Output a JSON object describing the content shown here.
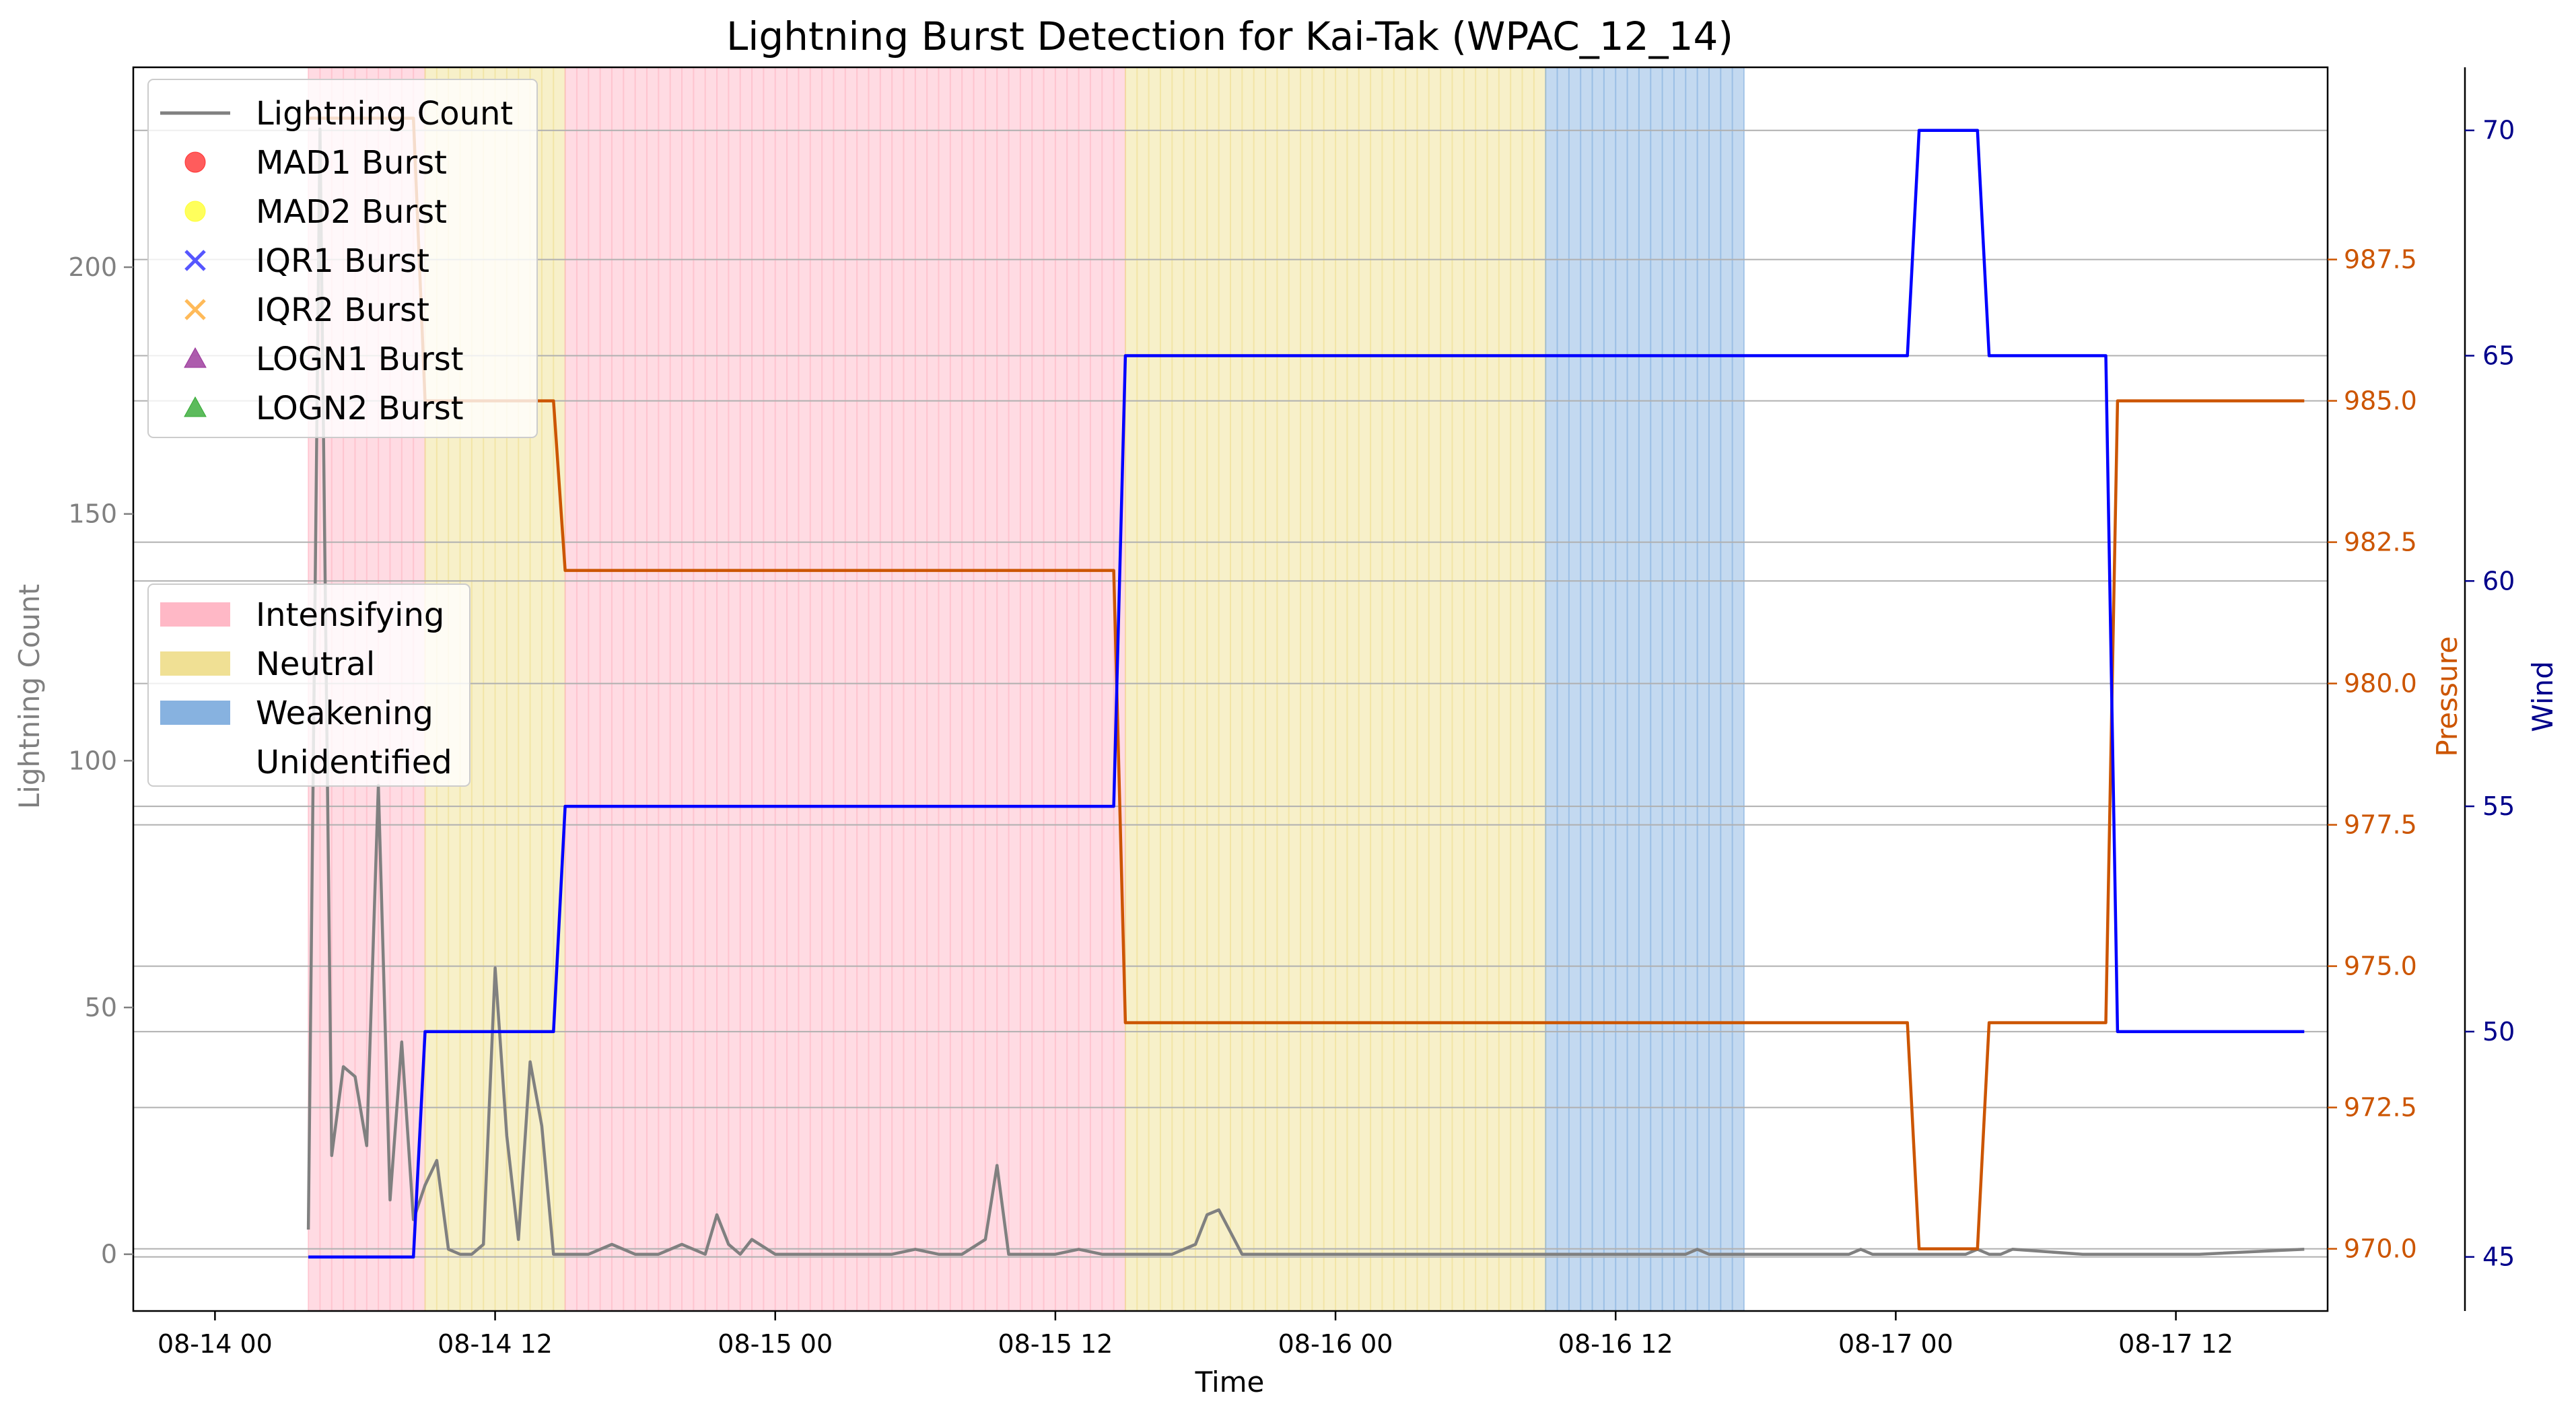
{
  "chart_data": {
    "type": "line",
    "title": "Lightning Burst Detection for Kai-Tak (WPAC_12_14)",
    "xlabel": "Time",
    "ylabel_left": "Lightning Count",
    "ylabel_right1": "Pressure",
    "ylabel_right2": "Wind",
    "x_ticks": [
      "08-14 00",
      "08-14 12",
      "08-15 00",
      "08-15 12",
      "08-16 00",
      "08-16 12",
      "08-17 00",
      "08-17 12"
    ],
    "x_tick_hours": [
      0,
      12,
      24,
      36,
      48,
      60,
      72,
      84
    ],
    "xlim_hours": [
      -3.5,
      90.5
    ],
    "ylim_left": [
      -11.5,
      240.5
    ],
    "yticks_left": [
      0,
      50,
      100,
      150,
      200
    ],
    "ylim_pressure": [
      968.9,
      990.9
    ],
    "yticks_pressure": [
      "970.0",
      "972.5",
      "975.0",
      "977.5",
      "980.0",
      "982.5",
      "985.0",
      "987.5"
    ],
    "ylim_wind": [
      43.8,
      71.4
    ],
    "yticks_wind": [
      45,
      50,
      55,
      60,
      65,
      70
    ],
    "grid": "horizontal",
    "colors": {
      "lightning": "#808080",
      "pressure": "#cc5500",
      "wind": "#0000ff",
      "wind_axis": "#00008b",
      "intensifying": "#ffb0c0",
      "neutral": "#eedd88",
      "weakening": "#7aaadd"
    },
    "regimes": [
      {
        "label": "Intensifying",
        "start": 4,
        "end": 9
      },
      {
        "label": "Neutral",
        "start": 9,
        "end": 15
      },
      {
        "label": "Intensifying",
        "start": 15,
        "end": 39
      },
      {
        "label": "Neutral",
        "start": 39,
        "end": 57
      },
      {
        "label": "Weakening",
        "start": 57,
        "end": 65.5
      }
    ],
    "series": [
      {
        "name": "Lightning Count",
        "axis": "left",
        "x": [
          4,
          4.5,
          5,
          5.5,
          6,
          6.5,
          7,
          7.5,
          8,
          8.5,
          9,
          9.5,
          10,
          10.5,
          11,
          11.5,
          12,
          12.5,
          13,
          13.5,
          14,
          14.5,
          15,
          16,
          17,
          18,
          19,
          20,
          21,
          21.5,
          22,
          22.5,
          23,
          24,
          25,
          26,
          27,
          28,
          29,
          30,
          31,
          32,
          33,
          33.5,
          34,
          35,
          36,
          37,
          38,
          39,
          40,
          41,
          42,
          42.5,
          43,
          44,
          45,
          50,
          55,
          60,
          63,
          63.5,
          64,
          70,
          70.5,
          71,
          75,
          75.5,
          76,
          76.5,
          77,
          80,
          85,
          89.5
        ],
        "values": [
          5,
          228,
          20,
          38,
          36,
          22,
          95,
          11,
          43,
          7,
          14,
          19,
          1,
          0,
          0,
          2,
          58,
          24,
          3,
          39,
          26,
          0,
          0,
          0,
          2,
          0,
          0,
          2,
          0,
          8,
          2,
          0,
          3,
          0,
          0,
          0,
          0,
          0,
          0,
          1,
          0,
          0,
          3,
          18,
          0,
          0,
          0,
          1,
          0,
          0,
          0,
          0,
          2,
          8,
          9,
          0,
          0,
          0,
          0,
          0,
          0,
          1,
          0,
          0,
          1,
          0,
          0,
          1,
          0,
          0,
          1,
          0,
          0,
          1
        ]
      },
      {
        "name": "Pressure",
        "axis": "right1",
        "x": [
          4,
          8.5,
          9,
          14.5,
          15,
          38.5,
          39,
          72.5,
          73,
          75.5,
          76,
          81,
          81.5,
          89.5
        ],
        "values": [
          990,
          990,
          985,
          985,
          982,
          982,
          974,
          974,
          970,
          970,
          974,
          974,
          985,
          985
        ]
      },
      {
        "name": "Wind",
        "axis": "right2",
        "x": [
          4,
          8.5,
          9,
          14.5,
          15,
          38.5,
          39,
          72.5,
          73,
          75.5,
          76,
          81,
          81.5,
          89.5
        ],
        "values": [
          45,
          45,
          50,
          50,
          55,
          55,
          65,
          65,
          70,
          70,
          65,
          65,
          50,
          50
        ]
      }
    ],
    "legend_markers": [
      {
        "label": "Lightning Count",
        "type": "line",
        "color": "#808080"
      },
      {
        "label": "MAD1 Burst",
        "type": "circle",
        "color": "#ff3333"
      },
      {
        "label": "MAD2 Burst",
        "type": "circle",
        "color": "#ffff33"
      },
      {
        "label": "IQR1 Burst",
        "type": "x",
        "color": "#4444ff"
      },
      {
        "label": "IQR2 Burst",
        "type": "x",
        "color": "#ffb347"
      },
      {
        "label": "LOGN1 Burst",
        "type": "triangle",
        "color": "#993399"
      },
      {
        "label": "LOGN2 Burst",
        "type": "triangle",
        "color": "#33aa33"
      }
    ],
    "legend_regimes": [
      {
        "label": "Intensifying",
        "color": "#ffb0c0"
      },
      {
        "label": "Neutral",
        "color": "#eedd88"
      },
      {
        "label": "Weakening",
        "color": "#7aaadd"
      },
      {
        "label": "Unidentified",
        "color": "#ffffff"
      }
    ],
    "legend_placement": "upper-left"
  }
}
